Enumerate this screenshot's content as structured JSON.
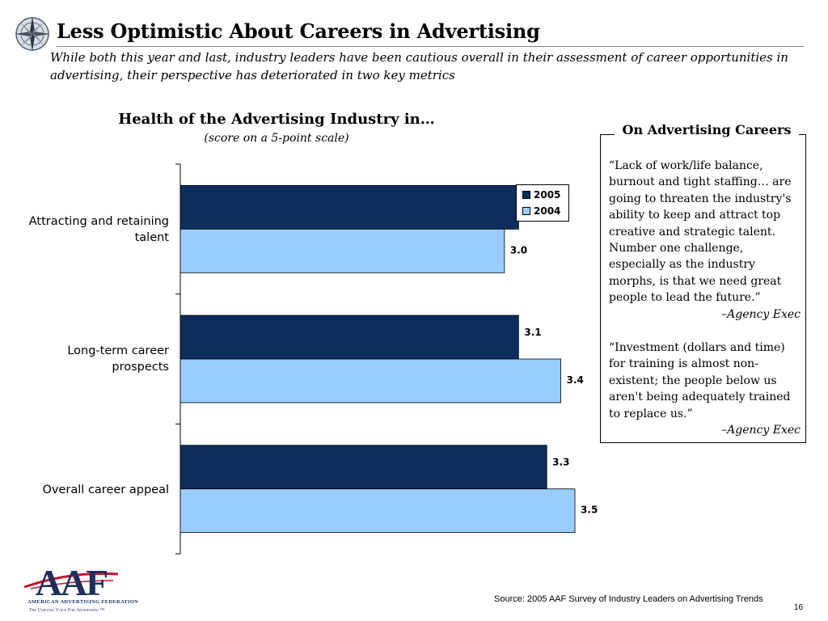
{
  "slide": {
    "title": "Less Optimistic About Careers in Advertising",
    "subtitle": "While both this year and last, industry leaders have been cautious overall in their assessment of career opportunities in advertising, their perspective has deteriorated in two key metrics",
    "page_number": "16",
    "source": "Source: 2005 AAF Survey of Industry Leaders on Advertising Trends"
  },
  "sidebar": {
    "heading": "On Advertising Careers",
    "quotes": [
      {
        "text": "“Lack of work/life balance, burnout and tight staffing… are going to threaten the industry's ability to keep and attract top creative and strategic talent. Number one challenge, especially as the industry morphs, is that we need great people to lead the future.”",
        "attribution": "–Agency Exec"
      },
      {
        "text": "“Investment (dollars and time) for training is almost non-existent; the people below us aren't being adequately trained to replace us.”",
        "attribution": "–Agency Exec"
      }
    ]
  },
  "logo": {
    "letters": "AAF",
    "name": "American Advertising Federation",
    "tagline": "The Unifying Voice For Advertising ™"
  },
  "chart_data": {
    "type": "bar",
    "orientation": "horizontal",
    "title": "Health of the Advertising Industry in…",
    "subtitle": "(score on a 5-point scale)",
    "categories": [
      "Attracting and retaining talent",
      "Long-term career prospects",
      "Overall career appeal"
    ],
    "series": [
      {
        "name": "2005",
        "values": [
          3.1,
          3.1,
          3.3
        ],
        "color": "#0d2d5c"
      },
      {
        "name": "2004",
        "values": [
          3.0,
          3.4,
          3.5
        ],
        "color": "#99ccff"
      }
    ],
    "xlim": [
      0.7,
      3.5
    ],
    "grid": false,
    "legend_position": "top-right",
    "data_labels": true
  }
}
